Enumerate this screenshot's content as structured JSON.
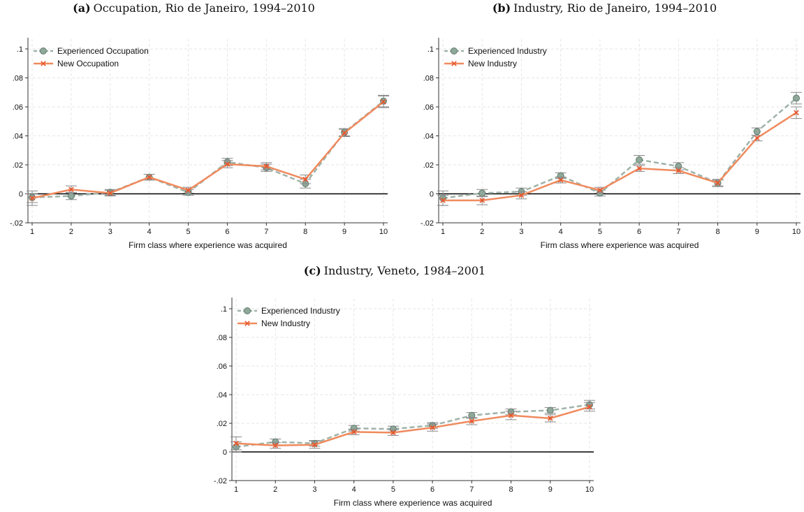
{
  "chart_data": [
    {
      "type": "line",
      "panel_label": "(a)",
      "title": "Occupation, Rio de Janeiro, 1994–2010",
      "xlabel": "Firm class where experience was acquired",
      "ylabel": "",
      "x": [
        1,
        2,
        3,
        4,
        5,
        6,
        7,
        8,
        9,
        10
      ],
      "ylim": [
        -0.02,
        0.1
      ],
      "yticks": [
        -0.02,
        0,
        0.02,
        0.04,
        0.06,
        0.08,
        0.1
      ],
      "ytick_labels": [
        "-.02",
        "0",
        ".02",
        ".04",
        ".06",
        ".08",
        ".1"
      ],
      "grid": true,
      "legend_position": "top-left",
      "series": [
        {
          "name": "Experienced Occupation",
          "color": "#9fb3a8",
          "marker": "circle",
          "style": "dashed",
          "values": [
            -0.0025,
            -0.0015,
            0.001,
            0.0115,
            0.001,
            0.022,
            0.018,
            0.007,
            0.0425,
            0.064
          ],
          "ci_low": [
            -0.008,
            -0.004,
            -0.001,
            0.0095,
            -0.001,
            0.0195,
            0.0155,
            0.004,
            0.04,
            0.06
          ],
          "ci_high": [
            0.002,
            0.001,
            0.003,
            0.0135,
            0.003,
            0.0245,
            0.0205,
            0.01,
            0.045,
            0.068
          ]
        },
        {
          "name": "New Occupation",
          "color": "#f08a5d",
          "marker": "x",
          "style": "solid",
          "values": [
            -0.003,
            0.003,
            0.0005,
            0.0115,
            0.0025,
            0.0205,
            0.019,
            0.01,
            0.042,
            0.0635
          ],
          "ci_low": [
            -0.006,
            0.0005,
            -0.0015,
            0.0095,
            0.0005,
            0.018,
            0.0165,
            0.007,
            0.0395,
            0.0595
          ],
          "ci_high": [
            0.0,
            0.0055,
            0.0025,
            0.0135,
            0.0045,
            0.023,
            0.0215,
            0.013,
            0.0445,
            0.0675
          ]
        }
      ]
    },
    {
      "type": "line",
      "panel_label": "(b)",
      "title": "Industry, Rio de Janeiro, 1994–2010",
      "xlabel": "Firm class where experience was acquired",
      "ylabel": "",
      "x": [
        1,
        2,
        3,
        4,
        5,
        6,
        7,
        8,
        9,
        10
      ],
      "ylim": [
        -0.02,
        0.1
      ],
      "yticks": [
        -0.02,
        0,
        0.02,
        0.04,
        0.06,
        0.08,
        0.1
      ],
      "ytick_labels": [
        "-.02",
        "0",
        ".02",
        ".04",
        ".06",
        ".08",
        ".1"
      ],
      "grid": true,
      "legend_position": "top-left",
      "series": [
        {
          "name": "Experienced Industry",
          "color": "#9fb3a8",
          "marker": "circle",
          "style": "dashed",
          "values": [
            -0.003,
            0.0005,
            0.0015,
            0.0125,
            0.0005,
            0.0235,
            0.019,
            0.0075,
            0.043,
            0.066
          ],
          "ci_low": [
            -0.008,
            -0.002,
            -0.001,
            0.0105,
            -0.0015,
            0.0205,
            0.0165,
            0.005,
            0.0405,
            0.062
          ],
          "ci_high": [
            0.002,
            0.003,
            0.004,
            0.0145,
            0.0025,
            0.0265,
            0.0215,
            0.01,
            0.0455,
            0.07
          ]
        },
        {
          "name": "New Industry",
          "color": "#f08a5d",
          "marker": "x",
          "style": "solid",
          "values": [
            -0.0045,
            -0.0045,
            -0.001,
            0.0095,
            0.0025,
            0.0175,
            0.016,
            0.0075,
            0.0385,
            0.056
          ],
          "ci_low": [
            -0.008,
            -0.0075,
            -0.0035,
            0.0075,
            0.0005,
            0.0155,
            0.014,
            0.0055,
            0.0365,
            0.052
          ],
          "ci_high": [
            -0.001,
            -0.0015,
            0.0015,
            0.0115,
            0.0045,
            0.0195,
            0.018,
            0.0095,
            0.0405,
            0.06
          ]
        }
      ]
    },
    {
      "type": "line",
      "panel_label": "(c)",
      "title": "Industry, Veneto, 1984–2001",
      "xlabel": "Firm class where experience was acquired",
      "ylabel": "",
      "x": [
        1,
        2,
        3,
        4,
        5,
        6,
        7,
        8,
        9,
        10
      ],
      "ylim": [
        -0.02,
        0.1
      ],
      "yticks": [
        -0.02,
        0,
        0.02,
        0.04,
        0.06,
        0.08,
        0.1
      ],
      "ytick_labels": [
        "-.02",
        "0",
        ".02",
        ".04",
        ".06",
        ".08",
        ".1"
      ],
      "grid": true,
      "legend_position": "top-left",
      "series": [
        {
          "name": "Experienced Industry",
          "color": "#9fb3a8",
          "marker": "circle",
          "style": "dashed",
          "values": [
            0.0035,
            0.007,
            0.006,
            0.0165,
            0.016,
            0.0185,
            0.0255,
            0.028,
            0.029,
            0.033
          ],
          "ci_low": [
            0.0,
            0.005,
            0.004,
            0.0145,
            0.014,
            0.0165,
            0.0235,
            0.026,
            0.027,
            0.03
          ],
          "ci_high": [
            0.007,
            0.009,
            0.008,
            0.0185,
            0.018,
            0.0205,
            0.0275,
            0.03,
            0.031,
            0.036
          ]
        },
        {
          "name": "New Industry",
          "color": "#f08a5d",
          "marker": "x",
          "style": "solid",
          "values": [
            0.006,
            0.0045,
            0.005,
            0.014,
            0.0135,
            0.017,
            0.0215,
            0.0255,
            0.0235,
            0.0315
          ],
          "ci_low": [
            0.0015,
            0.0025,
            0.0025,
            0.012,
            0.0115,
            0.0145,
            0.019,
            0.0225,
            0.021,
            0.0285
          ],
          "ci_high": [
            0.0105,
            0.0065,
            0.0075,
            0.016,
            0.0155,
            0.0195,
            0.024,
            0.0285,
            0.026,
            0.0345
          ]
        }
      ]
    }
  ]
}
